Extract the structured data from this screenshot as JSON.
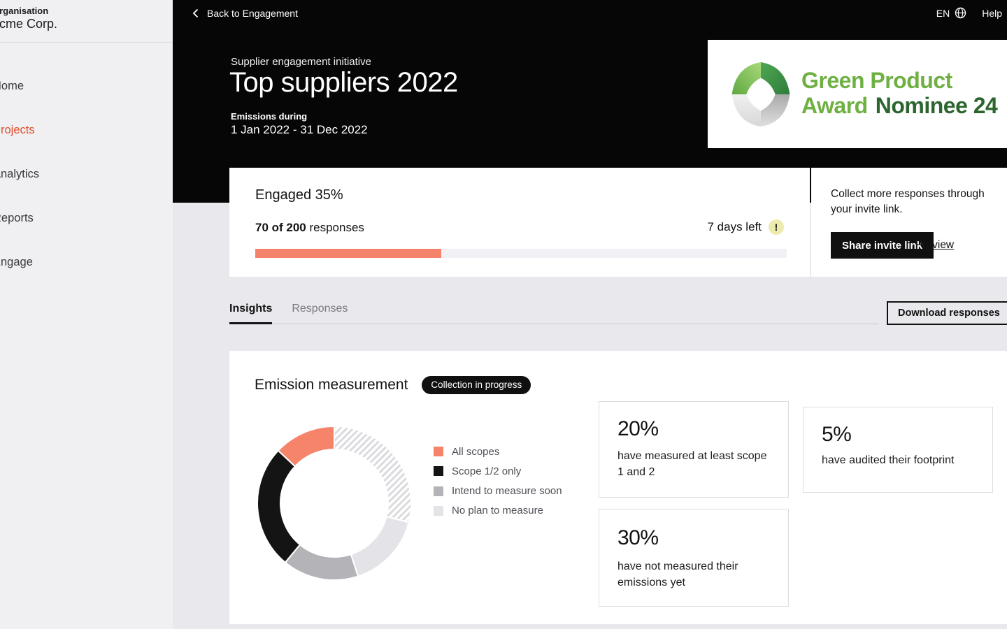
{
  "sidebar": {
    "org_label": "Organisation",
    "org_name": "Acme Corp.",
    "items": [
      {
        "label": "Home",
        "active": false
      },
      {
        "label": "Projects",
        "active": true
      },
      {
        "label": "Analytics",
        "active": false
      },
      {
        "label": "Reports",
        "active": false
      },
      {
        "label": "Engage",
        "active": false
      }
    ]
  },
  "topbar": {
    "back_label": "Back to Engagement",
    "language": "EN",
    "help_label": "Help"
  },
  "header": {
    "eyebrow": "Supplier engagement initiative",
    "title": "Top suppliers 2022",
    "period_label": "Emissions during",
    "period_value": "1 Jan 2022 - 31 Dec 2022",
    "award": {
      "line1": "Green Product",
      "line2_light": "Award",
      "line2_dark": "Nominee 24"
    }
  },
  "engagement": {
    "title": "Engaged 35%",
    "responses_bold": "70 of 200",
    "responses_rest": " responses",
    "days_left": "7 days left",
    "warning_glyph": "!",
    "progress_percent": 35,
    "progress_color": "#F5836C"
  },
  "invite": {
    "text": "Collect more responses through your invite link.",
    "share_button": "Share invite link",
    "preview_link": "Preview"
  },
  "tabs": {
    "items": [
      {
        "label": "Insights",
        "active": true
      },
      {
        "label": "Responses",
        "active": false
      }
    ],
    "download_button": "Download responses"
  },
  "insights": {
    "section_title": "Emission measurement",
    "status_badge": "Collection in progress",
    "stats": [
      {
        "value": "20%",
        "text": "have measured at least scope 1 and 2"
      },
      {
        "value": "5%",
        "text": "have audited their footprint"
      },
      {
        "value": "30%",
        "text": "have not measured their emissions yet"
      }
    ]
  },
  "chart_data": {
    "type": "pie",
    "donut": true,
    "title": "Emission measurement",
    "start_angle_deg": 0,
    "clockwise": true,
    "segments": [
      {
        "label": "No response yet (hatched)",
        "value": 29,
        "fill": "hatched"
      },
      {
        "label": "No plan to measure",
        "value": 16,
        "fill": "#E4E3E7"
      },
      {
        "label": "Intend to measure soon",
        "value": 16,
        "fill": "#B4B3B7"
      },
      {
        "label": "Scope 1/2 only",
        "value": 26,
        "fill": "#141414"
      },
      {
        "label": "All scopes",
        "value": 13,
        "fill": "#F5846B"
      }
    ],
    "legend_order": [
      "All scopes",
      "Scope 1/2 only",
      "Intend to measure soon",
      "No plan to measure"
    ],
    "legend_position": "right",
    "hatch_stripe_color": "#DBDADE"
  },
  "colors": {
    "accent_orange": "#F5836C",
    "active_nav": "#DF4F2C",
    "header_black": "#060606",
    "award_light_green": "#6FB043",
    "award_dark_green": "#2D652F",
    "warning_yellow": "#ECEAAC",
    "page_bg": "#E9E8EC",
    "sidebar_bg": "#F0EFF2"
  }
}
